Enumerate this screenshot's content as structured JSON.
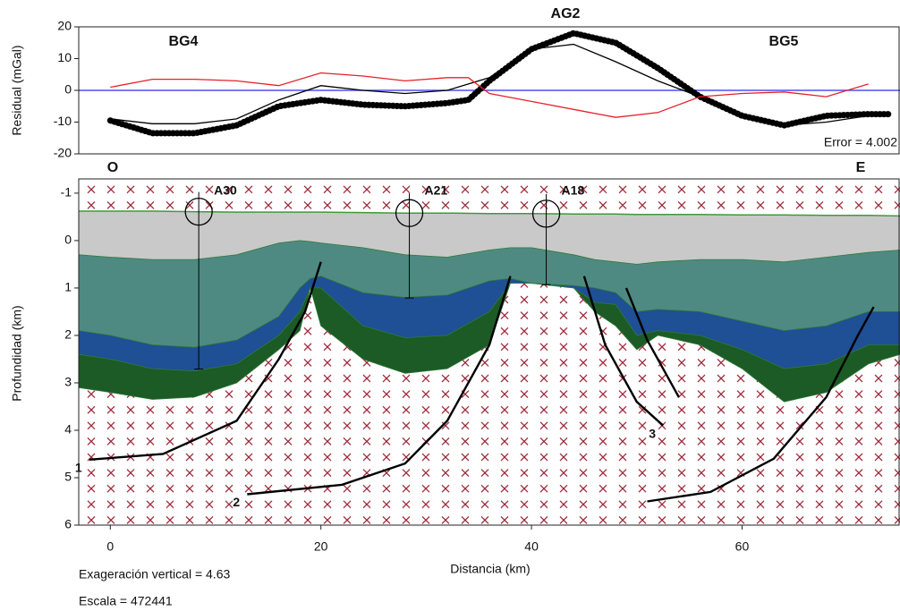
{
  "chart_data": [
    {
      "type": "line",
      "y_label": "Residual (mGal)",
      "x": [
        0,
        4,
        8,
        12,
        16,
        20,
        24,
        28,
        32,
        34,
        36,
        40,
        44,
        48,
        52,
        56,
        60,
        64,
        68,
        72,
        74
      ],
      "xlim": [
        -3,
        75
      ],
      "ylim": [
        -20,
        20
      ],
      "yticks": [
        -20,
        -10,
        0,
        10,
        20
      ],
      "reference_line": {
        "value": 0,
        "color": "#4f4ff5"
      },
      "series": [
        {
          "color": "#000000",
          "style": "dotted",
          "values": [
            -9.5,
            -13.5,
            -13.5,
            -11,
            -5,
            -3,
            -4.5,
            -5,
            -4,
            -3,
            3,
            13,
            18,
            15,
            7,
            -2,
            -8,
            -11,
            -8,
            -7.5,
            -7.5
          ]
        },
        {
          "color": "#000000",
          "style": "solid",
          "values": [
            -9,
            -10.5,
            -10.5,
            -9,
            -3,
            1.5,
            0,
            -1,
            0,
            2,
            4,
            13,
            14.5,
            9,
            3,
            -2,
            -8,
            -11,
            -10,
            -8,
            -8
          ]
        },
        {
          "color": "#e8202a",
          "style": "solid",
          "values": [
            1,
            3.5,
            3.5,
            3,
            1.5,
            5.5,
            4.5,
            3,
            4,
            4,
            -1,
            -3.5,
            -6,
            -8.5,
            -7,
            -2,
            -1,
            -0.5,
            -2,
            2,
            null
          ]
        }
      ],
      "annotations": [
        "AG2",
        "BG4",
        "BG5",
        "Error = 4.002"
      ],
      "ends": [
        "O",
        "E"
      ]
    },
    {
      "type": "section",
      "x_label": "Distancia (km)",
      "y_label": "Profundidad (km)",
      "xlim": [
        -3,
        75
      ],
      "xticks": [
        0,
        20,
        40,
        60
      ],
      "ylim": [
        -1.3,
        6
      ],
      "yticks": [
        -1,
        0,
        1,
        2,
        3,
        4,
        5,
        6
      ],
      "y_inverted": true,
      "x": [
        -3,
        0,
        4,
        8,
        12,
        16,
        18,
        19,
        20,
        24,
        28,
        32,
        36,
        38,
        40,
        44,
        46,
        48,
        50,
        52,
        56,
        60,
        64,
        68,
        72,
        75
      ],
      "surface": {
        "color": "#3f9a3a",
        "values": [
          -0.62,
          -0.62,
          -0.62,
          -0.61,
          -0.6,
          -0.6,
          -0.6,
          -0.6,
          -0.6,
          -0.59,
          -0.58,
          -0.58,
          -0.57,
          -0.57,
          -0.57,
          -0.56,
          -0.56,
          -0.56,
          -0.55,
          -0.55,
          -0.55,
          -0.54,
          -0.54,
          -0.53,
          -0.53,
          -0.52
        ]
      },
      "layers": [
        {
          "color": "#c9c9c9",
          "values": [
            0.3,
            0.35,
            0.4,
            0.4,
            0.3,
            0.05,
            0.0,
            0.02,
            0.05,
            0.15,
            0.3,
            0.35,
            0.2,
            0.15,
            0.15,
            0.3,
            0.4,
            0.45,
            0.5,
            0.45,
            0.4,
            0.4,
            0.45,
            0.35,
            0.25,
            0.2
          ]
        },
        {
          "color": "#4f8a82",
          "values": [
            1.9,
            2.0,
            2.2,
            2.25,
            2.1,
            1.6,
            1.0,
            0.8,
            0.75,
            1.1,
            1.2,
            1.15,
            0.85,
            0.8,
            0.9,
            0.95,
            1.0,
            1.1,
            1.5,
            1.45,
            1.5,
            1.7,
            1.9,
            1.8,
            1.5,
            1.5
          ]
        },
        {
          "color": "#1f4f94",
          "values": [
            2.4,
            2.5,
            2.7,
            2.75,
            2.6,
            2.0,
            1.5,
            1.0,
            1.0,
            1.8,
            2.05,
            2.0,
            1.5,
            0.9,
            0.9,
            1.0,
            1.3,
            1.35,
            2.0,
            1.9,
            2.0,
            2.3,
            2.7,
            2.6,
            2.2,
            2.2
          ]
        },
        {
          "color": "#1c5a26",
          "values": [
            3.1,
            3.2,
            3.35,
            3.3,
            3.0,
            2.3,
            1.9,
            1.0,
            1.8,
            2.5,
            2.8,
            2.7,
            2.2,
            0.9,
            0.9,
            1.0,
            1.5,
            1.8,
            2.3,
            2.0,
            2.2,
            2.7,
            3.4,
            3.2,
            2.6,
            2.4
          ]
        }
      ],
      "basement": {
        "color": "#ffffff",
        "symbol_color": "#9b2335"
      },
      "wells": [
        {
          "name": "A30",
          "x": 8.4,
          "depth": 2.71
        },
        {
          "name": "A21",
          "x": 28.4,
          "depth": 1.21
        },
        {
          "name": "A18",
          "x": 41.4,
          "depth": 0.93
        }
      ],
      "faults": [
        {
          "label": "1",
          "x": [
            -2,
            5,
            12,
            16,
            18.5,
            20
          ],
          "depth": [
            4.62,
            4.5,
            3.8,
            2.5,
            1.5,
            0.45
          ]
        },
        {
          "label": "2",
          "x": [
            13,
            22,
            28,
            32,
            36,
            38
          ],
          "depth": [
            5.35,
            5.15,
            4.7,
            3.8,
            2.2,
            0.75
          ]
        },
        {
          "label": "3",
          "x": [
            52.5,
            50,
            47,
            45
          ],
          "depth": [
            3.9,
            3.4,
            2.2,
            0.75
          ]
        },
        {
          "x": [
            54,
            51,
            49
          ],
          "depth": [
            3.3,
            2.1,
            1.0
          ]
        },
        {
          "x": [
            51,
            57,
            63,
            68,
            71,
            72.5
          ],
          "depth": [
            5.5,
            5.3,
            4.6,
            3.3,
            2.0,
            1.4
          ]
        }
      ],
      "notes": [
        "Exageración vertical = 4.63",
        "Escala = 472441"
      ]
    }
  ]
}
